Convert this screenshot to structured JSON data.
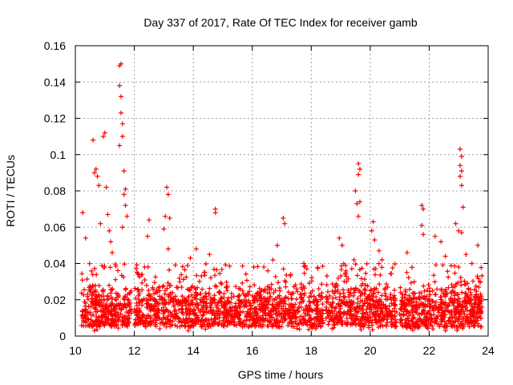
{
  "chart_data": {
    "type": "scatter",
    "title": "Day 337 of 2017, Rate Of TEC Index for receiver gamb",
    "xlabel": "GPS time / hours",
    "ylabel": "ROTI / TECUs",
    "xlim": [
      10,
      24
    ],
    "ylim": [
      0,
      0.16
    ],
    "x_ticks": [
      10,
      12,
      14,
      16,
      18,
      20,
      22,
      24
    ],
    "x_tick_labels": [
      "10",
      "12",
      "14",
      "16",
      "18",
      "20",
      "22",
      "24"
    ],
    "y_ticks": [
      0,
      0.02,
      0.04,
      0.06,
      0.08,
      0.1,
      0.12,
      0.14,
      0.16
    ],
    "y_tick_labels": [
      "0",
      "0.02",
      "0.04",
      "0.06",
      "0.08",
      "0.1",
      "0.12",
      "0.14",
      "0.16"
    ],
    "grid": true,
    "marker": "+",
    "marker_color": "#ff0000",
    "data_gaps": [
      [
        11.9,
        12.0
      ],
      [
        18.4,
        18.5
      ],
      [
        20.9,
        21.0
      ]
    ],
    "notable_points": [
      {
        "x": 10.25,
        "y": 0.068
      },
      {
        "x": 10.35,
        "y": 0.054
      },
      {
        "x": 10.6,
        "y": 0.108
      },
      {
        "x": 10.65,
        "y": 0.09
      },
      {
        "x": 10.7,
        "y": 0.092
      },
      {
        "x": 10.75,
        "y": 0.088
      },
      {
        "x": 10.8,
        "y": 0.083
      },
      {
        "x": 10.85,
        "y": 0.062
      },
      {
        "x": 10.95,
        "y": 0.11
      },
      {
        "x": 11.0,
        "y": 0.112
      },
      {
        "x": 11.05,
        "y": 0.082
      },
      {
        "x": 11.1,
        "y": 0.067
      },
      {
        "x": 11.15,
        "y": 0.058
      },
      {
        "x": 11.2,
        "y": 0.052
      },
      {
        "x": 11.25,
        "y": 0.046
      },
      {
        "x": 11.5,
        "y": 0.149
      },
      {
        "x": 11.55,
        "y": 0.15
      },
      {
        "x": 11.5,
        "y": 0.138
      },
      {
        "x": 11.55,
        "y": 0.132
      },
      {
        "x": 11.55,
        "y": 0.123
      },
      {
        "x": 11.6,
        "y": 0.117
      },
      {
        "x": 11.6,
        "y": 0.11
      },
      {
        "x": 11.5,
        "y": 0.105
      },
      {
        "x": 11.65,
        "y": 0.091
      },
      {
        "x": 11.7,
        "y": 0.081
      },
      {
        "x": 11.65,
        "y": 0.078
      },
      {
        "x": 11.7,
        "y": 0.072
      },
      {
        "x": 11.75,
        "y": 0.066
      },
      {
        "x": 11.6,
        "y": 0.06
      },
      {
        "x": 12.35,
        "y": 0.038
      },
      {
        "x": 12.5,
        "y": 0.064
      },
      {
        "x": 12.45,
        "y": 0.055
      },
      {
        "x": 13.0,
        "y": 0.059
      },
      {
        "x": 13.05,
        "y": 0.066
      },
      {
        "x": 13.1,
        "y": 0.082
      },
      {
        "x": 13.15,
        "y": 0.078
      },
      {
        "x": 13.2,
        "y": 0.065
      },
      {
        "x": 13.15,
        "y": 0.048
      },
      {
        "x": 13.9,
        "y": 0.043
      },
      {
        "x": 14.1,
        "y": 0.048
      },
      {
        "x": 14.55,
        "y": 0.045
      },
      {
        "x": 14.75,
        "y": 0.07
      },
      {
        "x": 14.75,
        "y": 0.068
      },
      {
        "x": 16.05,
        "y": 0.038
      },
      {
        "x": 16.7,
        "y": 0.042
      },
      {
        "x": 16.85,
        "y": 0.05
      },
      {
        "x": 17.05,
        "y": 0.065
      },
      {
        "x": 17.1,
        "y": 0.062
      },
      {
        "x": 17.75,
        "y": 0.04
      },
      {
        "x": 18.95,
        "y": 0.054
      },
      {
        "x": 19.05,
        "y": 0.05
      },
      {
        "x": 19.5,
        "y": 0.08
      },
      {
        "x": 19.6,
        "y": 0.095
      },
      {
        "x": 19.65,
        "y": 0.092
      },
      {
        "x": 19.6,
        "y": 0.089
      },
      {
        "x": 19.65,
        "y": 0.074
      },
      {
        "x": 19.55,
        "y": 0.073
      },
      {
        "x": 19.6,
        "y": 0.066
      },
      {
        "x": 19.45,
        "y": 0.042
      },
      {
        "x": 20.1,
        "y": 0.063
      },
      {
        "x": 20.05,
        "y": 0.058
      },
      {
        "x": 20.15,
        "y": 0.053
      },
      {
        "x": 20.3,
        "y": 0.047
      },
      {
        "x": 20.4,
        "y": 0.042
      },
      {
        "x": 21.25,
        "y": 0.046
      },
      {
        "x": 21.75,
        "y": 0.072
      },
      {
        "x": 21.8,
        "y": 0.07
      },
      {
        "x": 21.75,
        "y": 0.061
      },
      {
        "x": 21.8,
        "y": 0.056
      },
      {
        "x": 22.2,
        "y": 0.055
      },
      {
        "x": 22.4,
        "y": 0.052
      },
      {
        "x": 22.55,
        "y": 0.044
      },
      {
        "x": 22.9,
        "y": 0.062
      },
      {
        "x": 23.0,
        "y": 0.058
      },
      {
        "x": 23.05,
        "y": 0.103
      },
      {
        "x": 23.1,
        "y": 0.099
      },
      {
        "x": 23.05,
        "y": 0.094
      },
      {
        "x": 23.1,
        "y": 0.091
      },
      {
        "x": 23.05,
        "y": 0.088
      },
      {
        "x": 23.1,
        "y": 0.083
      },
      {
        "x": 23.15,
        "y": 0.071
      },
      {
        "x": 23.1,
        "y": 0.057
      },
      {
        "x": 23.25,
        "y": 0.045
      },
      {
        "x": 23.65,
        "y": 0.05
      },
      {
        "x": 23.45,
        "y": 0.04
      }
    ],
    "dense_band": {
      "x_range": [
        10.2,
        23.8
      ],
      "typical_y": [
        0.005,
        0.03
      ],
      "upper_envelope_y": 0.04
    }
  }
}
